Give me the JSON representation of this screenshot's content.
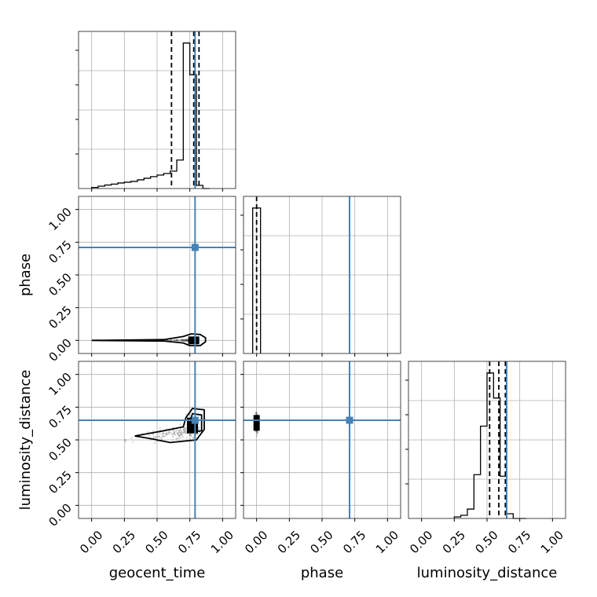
{
  "chart_data": {
    "type": "corner",
    "parameters": [
      "geocent_time",
      "phase",
      "luminosity_distance"
    ],
    "axis_range": [
      -0.1,
      1.1
    ],
    "ticks": [
      0.0,
      0.25,
      0.5,
      0.75,
      1.0
    ],
    "tick_labels": [
      "0.00",
      "0.25",
      "0.50",
      "0.75",
      "1.00"
    ],
    "grid": true,
    "truth_color": "#4682b4",
    "truths": {
      "geocent_time": 0.79,
      "phase": 0.71,
      "luminosity_distance": 0.65
    },
    "histograms": {
      "geocent_time": {
        "bins": [
          0.0,
          0.05,
          0.1,
          0.15,
          0.2,
          0.25,
          0.3,
          0.35,
          0.4,
          0.45,
          0.5,
          0.55,
          0.6,
          0.65,
          0.7,
          0.75,
          0.8,
          0.85,
          0.9
        ],
        "counts": [
          0.007,
          0.015,
          0.022,
          0.028,
          0.035,
          0.04,
          0.045,
          0.055,
          0.065,
          0.075,
          0.085,
          0.095,
          0.11,
          0.18,
          0.92,
          0.72,
          0.02,
          0.0
        ],
        "quantiles": [
          0.61,
          0.78,
          0.82
        ]
      },
      "phase": {
        "bins": [
          -0.03,
          0.0,
          0.03
        ],
        "counts": [
          1.0,
          1.0
        ],
        "quantiles": [
          0.0
        ]
      },
      "luminosity_distance": {
        "bins": [
          0.25,
          0.3,
          0.35,
          0.4,
          0.45,
          0.5,
          0.55,
          0.6,
          0.65,
          0.7,
          0.75,
          0.8
        ],
        "counts": [
          0.01,
          0.02,
          0.06,
          0.28,
          0.59,
          0.93,
          0.77,
          0.27,
          0.03,
          0.0,
          0.0
        ],
        "quantiles": [
          0.52,
          0.59,
          0.64
        ]
      }
    },
    "pairs": [
      {
        "x": "geocent_time",
        "y": "phase",
        "contours": [
          [
            [
              0.0,
              0.0
            ],
            [
              0.55,
              -0.005
            ],
            [
              0.7,
              -0.02
            ],
            [
              0.75,
              -0.04
            ],
            [
              0.83,
              -0.04
            ],
            [
              0.87,
              -0.01
            ],
            [
              0.87,
              0.02
            ],
            [
              0.83,
              0.045
            ],
            [
              0.76,
              0.05
            ],
            [
              0.7,
              0.03
            ],
            [
              0.55,
              0.006
            ],
            [
              0.0,
              0.0
            ]
          ]
        ],
        "density_core": [
          0.78,
          0.0
        ]
      },
      {
        "x": "geocent_time",
        "y": "luminosity_distance",
        "contours": [
          [
            [
              0.33,
              0.53
            ],
            [
              0.55,
              0.57
            ],
            [
              0.7,
              0.6
            ],
            [
              0.72,
              0.67
            ],
            [
              0.77,
              0.74
            ],
            [
              0.86,
              0.73
            ],
            [
              0.86,
              0.58
            ],
            [
              0.8,
              0.5
            ],
            [
              0.6,
              0.48
            ],
            [
              0.45,
              0.51
            ],
            [
              0.33,
              0.53
            ]
          ],
          [
            [
              0.74,
              0.6
            ],
            [
              0.77,
              0.7
            ],
            [
              0.84,
              0.69
            ],
            [
              0.84,
              0.57
            ],
            [
              0.78,
              0.56
            ],
            [
              0.74,
              0.6
            ]
          ]
        ],
        "density_core": [
          0.77,
          0.61
        ]
      },
      {
        "x": "phase",
        "y": "luminosity_distance",
        "contours": [],
        "density_core": [
          0.0,
          0.63
        ]
      }
    ]
  }
}
